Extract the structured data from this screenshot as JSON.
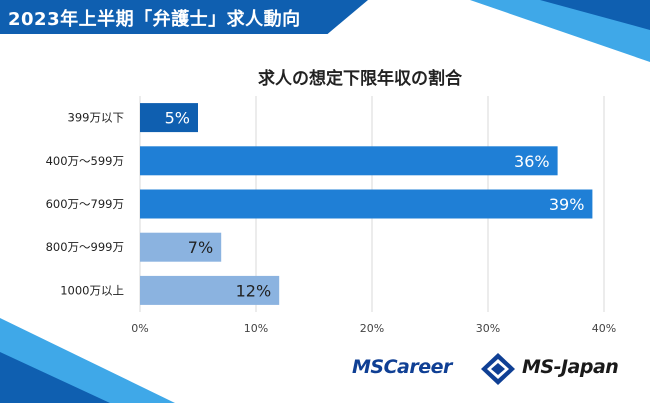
{
  "header": {
    "title": "2023年上半期「弁護士」求人動向"
  },
  "brand": {
    "logo_primary": "MSCareer",
    "logo_secondary": "MS-Japan",
    "colors": {
      "header": "#0f5fb0",
      "accent_light": "#3fa8e8"
    }
  },
  "chart_data": {
    "type": "bar",
    "orientation": "horizontal",
    "title": "求人の想定下限年収の割合",
    "categories": [
      "399万以下",
      "400万～599万",
      "600万～799万",
      "800万～999万",
      "1000万以上"
    ],
    "values": [
      5,
      36,
      39,
      7,
      12
    ],
    "data_labels": [
      "5%",
      "36%",
      "39%",
      "7%",
      "12%"
    ],
    "bar_colors": [
      "#0f5fb0",
      "#1f7fd6",
      "#1f7fd6",
      "#8bb3e0",
      "#8bb3e0"
    ],
    "xlim": [
      0,
      40
    ],
    "xticks": [
      0,
      10,
      20,
      30,
      40
    ],
    "xtick_labels": [
      "0%",
      "10%",
      "20%",
      "30%",
      "40%"
    ],
    "grid": true
  }
}
